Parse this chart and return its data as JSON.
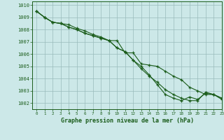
{
  "title": "Graphe pression niveau de la mer (hPa)",
  "background_color": "#cce8e8",
  "grid_color": "#99bbbb",
  "line_color": "#1a5c1a",
  "xlim": [
    -0.5,
    23
  ],
  "ylim": [
    1001.5,
    1010.3
  ],
  "yticks": [
    1002,
    1003,
    1004,
    1005,
    1006,
    1007,
    1008,
    1009,
    1010
  ],
  "xticks": [
    0,
    1,
    2,
    3,
    4,
    5,
    6,
    7,
    8,
    9,
    10,
    11,
    12,
    13,
    14,
    15,
    16,
    17,
    18,
    19,
    20,
    21,
    22,
    23
  ],
  "series1": [
    1009.5,
    1009.0,
    1008.6,
    1008.5,
    1008.2,
    1008.0,
    1007.7,
    1007.5,
    1007.3,
    1007.1,
    1006.5,
    1006.2,
    1005.5,
    1005.0,
    1004.3,
    1003.5,
    1002.7,
    1002.4,
    1002.2,
    1002.5,
    1002.3,
    1002.8,
    1002.7,
    1002.4
  ],
  "series2": [
    1009.5,
    1009.0,
    1008.6,
    1008.5,
    1008.4,
    1008.1,
    1007.9,
    1007.6,
    1007.4,
    1007.1,
    1007.1,
    1006.1,
    1006.1,
    1005.2,
    1005.1,
    1005.0,
    1004.6,
    1004.2,
    1003.9,
    1003.3,
    1003.0,
    1002.7,
    1002.7,
    1002.3
  ],
  "series3": [
    1009.5,
    1009.0,
    1008.6,
    1008.5,
    1008.2,
    1008.0,
    1007.7,
    1007.5,
    1007.3,
    1007.1,
    1006.5,
    1006.2,
    1005.5,
    1004.8,
    1004.2,
    1003.7,
    1003.1,
    1002.7,
    1002.4,
    1002.2,
    1002.2,
    1002.9,
    1002.7,
    1002.4
  ]
}
